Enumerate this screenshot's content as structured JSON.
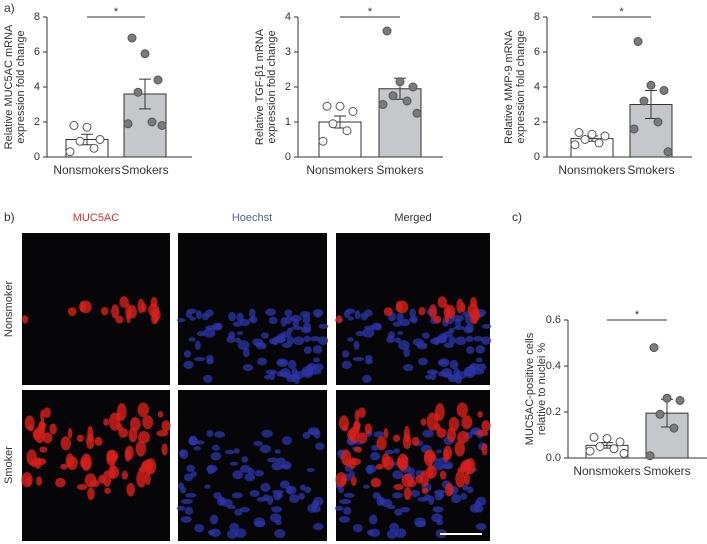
{
  "panel_labels": [
    "a)",
    "b)",
    "c)"
  ],
  "images": {
    "columns": [
      "MUC5AC",
      "Hoechst",
      "Merged"
    ],
    "rows": [
      "Nonsmoker",
      "Smoker"
    ]
  },
  "chart_data": [
    {
      "type": "bar",
      "ylabel": [
        "Relative MUC5AC mRNA",
        "expression fold change"
      ],
      "categories": [
        "Nonsmokers",
        "Smokers"
      ],
      "values": [
        1.0,
        3.6
      ],
      "errors": [
        0.3,
        0.85
      ],
      "points": [
        [
          1.8,
          1.7,
          1.0,
          0.9,
          0.5,
          0.3
        ],
        [
          6.8,
          5.9,
          4.4,
          3.7,
          2.0,
          1.9,
          1.8
        ]
      ],
      "colors": [
        "#ffffff",
        "#c6c7ca"
      ],
      "point_colors": [
        "#ffffff",
        "#7a7a7a"
      ],
      "ylim": [
        0,
        8
      ],
      "yticks": [
        0,
        2,
        4,
        6,
        8
      ],
      "annotation": "*"
    },
    {
      "type": "bar",
      "ylabel": [
        "Relative TGF-β1 mRNA",
        "expression fold change"
      ],
      "categories": [
        "Nonsmokers",
        "Smokers"
      ],
      "values": [
        1.0,
        1.95
      ],
      "errors": [
        0.17,
        0.3
      ],
      "points": [
        [
          1.45,
          1.45,
          1.3,
          0.95,
          0.75,
          0.45
        ],
        [
          3.6,
          2.15,
          2.0,
          1.75,
          1.6,
          1.5,
          1.25
        ]
      ],
      "colors": [
        "#ffffff",
        "#c6c7ca"
      ],
      "point_colors": [
        "#ffffff",
        "#7a7a7a"
      ],
      "ylim": [
        0,
        4
      ],
      "yticks": [
        0,
        1,
        2,
        3,
        4
      ],
      "annotation": "*"
    },
    {
      "type": "bar",
      "ylabel": [
        "Relative MMP-9 mRNA",
        "expression fold change"
      ],
      "categories": [
        "Nonsmokers",
        "Smokers"
      ],
      "values": [
        1.05,
        3.0
      ],
      "errors": [
        0.15,
        0.8
      ],
      "points": [
        [
          1.4,
          1.3,
          1.2,
          1.0,
          0.8,
          0.7
        ],
        [
          6.6,
          4.1,
          3.8,
          3.2,
          2.0,
          1.6,
          0.3
        ]
      ],
      "colors": [
        "#ffffff",
        "#c6c7ca"
      ],
      "point_colors": [
        "#ffffff",
        "#7a7a7a"
      ],
      "ylim": [
        0,
        8
      ],
      "yticks": [
        0,
        2,
        4,
        6,
        8
      ],
      "annotation": "*"
    },
    {
      "type": "bar",
      "ylabel": [
        "MUC5AC-positive cells",
        "relative to nuclei %"
      ],
      "categories": [
        "Nonsmokers",
        "Smokers"
      ],
      "values": [
        0.055,
        0.195
      ],
      "errors": [
        0.012,
        0.06
      ],
      "points": [
        [
          0.09,
          0.085,
          0.07,
          0.05,
          0.04,
          0.03,
          0.02
        ],
        [
          0.48,
          0.26,
          0.25,
          0.19,
          0.13,
          0.01
        ]
      ],
      "colors": [
        "#ffffff",
        "#c6c7ca"
      ],
      "point_colors": [
        "#ffffff",
        "#7a7a7a"
      ],
      "ylim": [
        0,
        0.6
      ],
      "yticks": [
        {
          "value": 0,
          "label": "0.0"
        },
        0.2,
        0.4,
        0.6
      ],
      "annotation": "*"
    }
  ]
}
